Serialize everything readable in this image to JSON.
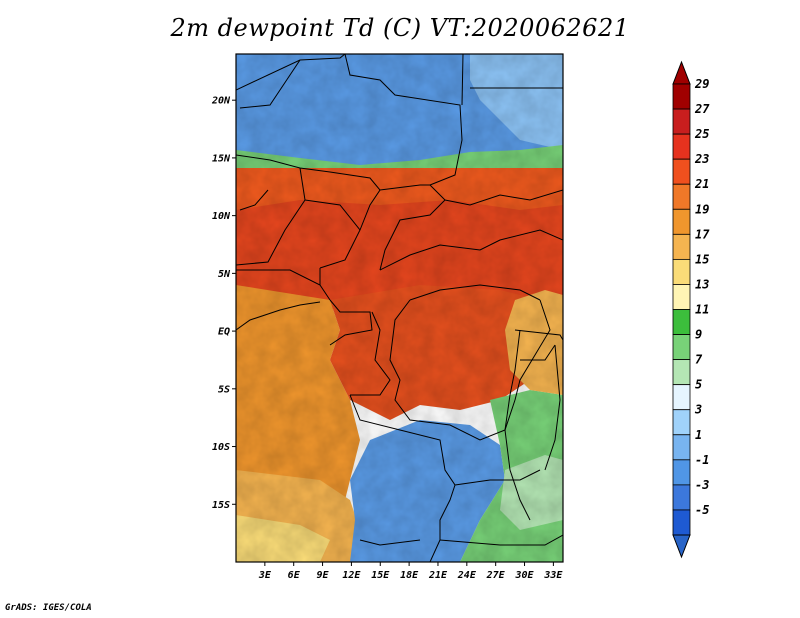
{
  "title": "2m dewpoint Td (C) VT:2020062621",
  "credit": "GrADS: IGES/COLA",
  "map": {
    "variable": "2m dewpoint",
    "units": "C",
    "lon_range": [
      0,
      34
    ],
    "lat_range": [
      -20,
      24
    ],
    "lat_ticks": [
      {
        "value": 20,
        "label": "20N"
      },
      {
        "value": 15,
        "label": "15N"
      },
      {
        "value": 10,
        "label": "10N"
      },
      {
        "value": 5,
        "label": "5N"
      },
      {
        "value": 0,
        "label": "EQ"
      },
      {
        "value": -5,
        "label": "5S"
      },
      {
        "value": -10,
        "label": "10S"
      },
      {
        "value": -15,
        "label": "15S"
      }
    ],
    "lon_ticks": [
      {
        "value": 3,
        "label": "3E"
      },
      {
        "value": 6,
        "label": "6E"
      },
      {
        "value": 9,
        "label": "9E"
      },
      {
        "value": 12,
        "label": "12E"
      },
      {
        "value": 15,
        "label": "15E"
      },
      {
        "value": 18,
        "label": "18E"
      },
      {
        "value": 21,
        "label": "21E"
      },
      {
        "value": 24,
        "label": "24E"
      },
      {
        "value": 27,
        "label": "27E"
      },
      {
        "value": 30,
        "label": "30E"
      },
      {
        "value": 33,
        "label": "33E"
      }
    ]
  },
  "colorbar": {
    "levels": [
      {
        "label": "29",
        "color": "#a00000"
      },
      {
        "label": "27",
        "color": "#c81e1e"
      },
      {
        "label": "25",
        "color": "#e6321e"
      },
      {
        "label": "23",
        "color": "#f0501e"
      },
      {
        "label": "21",
        "color": "#f07828"
      },
      {
        "label": "19",
        "color": "#f0962d"
      },
      {
        "label": "17",
        "color": "#f5b450"
      },
      {
        "label": "15",
        "color": "#fadc78"
      },
      {
        "label": "13",
        "color": "#fff5b4"
      },
      {
        "label": "11",
        "color": "#3cbe3c"
      },
      {
        "label": "9",
        "color": "#78d278"
      },
      {
        "label": "7",
        "color": "#b4e6b4"
      },
      {
        "label": "5",
        "color": "#e6f5ff"
      },
      {
        "label": "3",
        "color": "#a0d2fa"
      },
      {
        "label": "1",
        "color": "#78b4f0"
      },
      {
        "label": "-1",
        "color": "#5096e6"
      },
      {
        "label": "-3",
        "color": "#3c78dc"
      },
      {
        "label": "-5",
        "color": "#1e5ad2"
      }
    ],
    "top_color": "#a00000",
    "bottom_color": "#2864c8"
  },
  "regions_colors": {
    "sahara": "#5a9be6",
    "sahara_light": "#8cc3f5",
    "sahel": "#f05a1e",
    "central": "#e6461e",
    "congo_basin": "#e6501e",
    "west_coast": "#f0962d",
    "south_west": "#f5b450",
    "angola_desert": "#fadc78",
    "south_plateau_blue": "#5a9be6",
    "east_green": "#78d278",
    "east_green_light": "#b4e6b4"
  }
}
